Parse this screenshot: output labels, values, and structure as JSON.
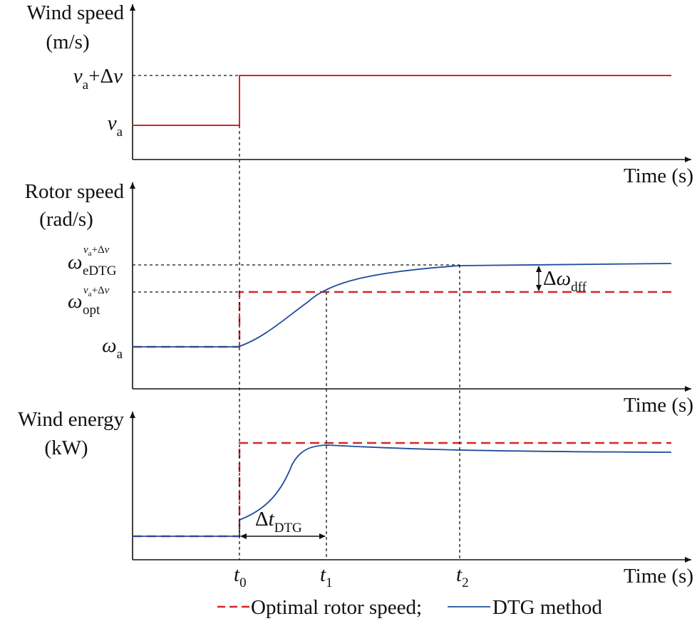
{
  "colors": {
    "wind": "#d62728",
    "optimal": "#d62728",
    "dtg": "#1f4e9c",
    "axis": "#111111"
  },
  "panels": {
    "wind": {
      "ylabel_line1": "Wind speed",
      "ylabel_line2": "(m/s)",
      "xlabel": "Time (s)",
      "level_high": {
        "base": "v",
        "sub": "a",
        "tail": "+Δ",
        "tail_var": "v"
      },
      "level_low": {
        "base": "v",
        "sub": "a"
      }
    },
    "rotor": {
      "ylabel_line1": "Rotor speed",
      "ylabel_line2": "(rad/s)",
      "xlabel": "Time (s)",
      "level_edtg": {
        "base": "ω",
        "sub": "eDTG",
        "sup_v": "v",
        "sup_sub": "a",
        "sup_tail": "+Δ",
        "sup_tail_var": "v"
      },
      "level_opt": {
        "base": "ω",
        "sub": "opt",
        "sup_v": "v",
        "sup_sub": "a",
        "sup_tail": "+Δ",
        "sup_tail_var": "v"
      },
      "level_a": {
        "base": "ω",
        "sub": "a"
      },
      "diff": {
        "delta": "Δ",
        "base": "ω",
        "sub": "dff"
      }
    },
    "energy": {
      "ylabel_line1": "Wind energy",
      "ylabel_line2": "(kW)",
      "xlabel": "Time (s)",
      "interval": {
        "delta": "Δ",
        "base": "t",
        "sub": "DTG"
      }
    }
  },
  "time_marks": [
    {
      "base": "t",
      "sub": "0"
    },
    {
      "base": "t",
      "sub": "1"
    },
    {
      "base": "t",
      "sub": "2"
    }
  ],
  "legend": {
    "optimal": "Optimal rotor speed;",
    "dtg": "DTG method"
  }
}
